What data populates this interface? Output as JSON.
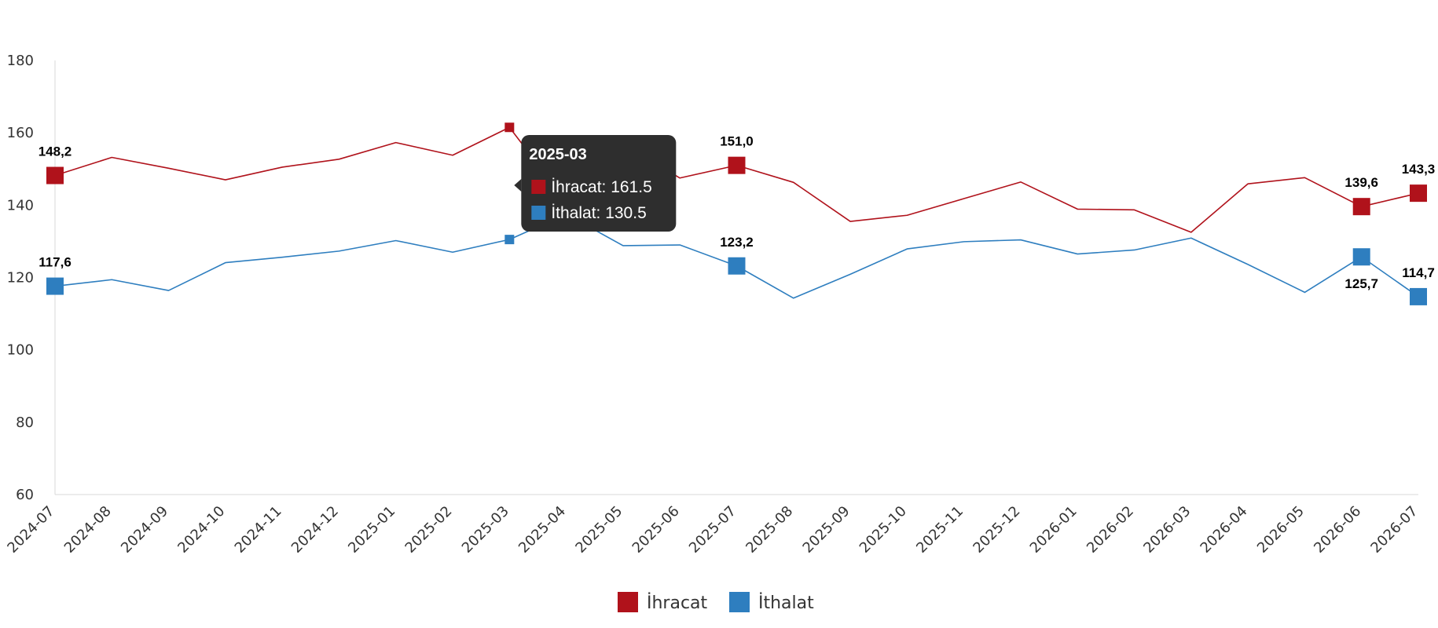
{
  "chart_data": {
    "type": "line",
    "title": "",
    "xlabel": "",
    "ylabel": "",
    "ylim": [
      60,
      180
    ],
    "yticks": [
      60,
      80,
      100,
      120,
      140,
      160,
      180
    ],
    "grid": false,
    "legend_position": "bottom-center",
    "categories": [
      "2024-07",
      "2024-08",
      "2024-09",
      "2024-10",
      "2024-11",
      "2024-12",
      "2025-01",
      "2025-02",
      "2025-03",
      "2025-04",
      "2025-05",
      "2025-06",
      "2025-07",
      "2025-08",
      "2025-09",
      "2025-10",
      "2025-11",
      "2025-12",
      "2026-01",
      "2026-02",
      "2026-03",
      "2026-04",
      "2026-05",
      "2026-06",
      "2026-07"
    ],
    "series": [
      {
        "name": "İhracat",
        "color": "#b0121b",
        "values": [
          148.2,
          153.2,
          150.2,
          147.0,
          150.5,
          152.7,
          157.3,
          153.8,
          161.5,
          141.0,
          157.0,
          147.5,
          151.0,
          146.3,
          135.5,
          137.2,
          141.8,
          146.4,
          138.9,
          138.7,
          132.5,
          145.9,
          147.6,
          139.6,
          143.3
        ],
        "labels": [
          {
            "index": 0,
            "text": "148,2"
          },
          {
            "index": 12,
            "text": "151,0"
          },
          {
            "index": 23,
            "text": "139,6"
          },
          {
            "index": 24,
            "text": "143,3"
          }
        ]
      },
      {
        "name": "İthalat",
        "color": "#2e7ebf",
        "values": [
          117.6,
          119.4,
          116.4,
          124.1,
          125.6,
          127.3,
          130.2,
          127.0,
          130.5,
          137.5,
          128.8,
          129.0,
          123.2,
          114.3,
          120.9,
          127.9,
          129.9,
          130.4,
          126.5,
          127.6,
          130.9,
          123.6,
          115.9,
          125.7,
          114.7
        ],
        "labels": [
          {
            "index": 0,
            "text": "117,6"
          },
          {
            "index": 12,
            "text": "123,2"
          },
          {
            "index": 23,
            "text": "125,7"
          },
          {
            "index": 24,
            "text": "114,7"
          }
        ]
      }
    ],
    "tooltip": {
      "category_index": 8,
      "title": "2025-03",
      "lines": [
        "İhracat: 161.5",
        "İthalat: 130.5"
      ]
    }
  }
}
